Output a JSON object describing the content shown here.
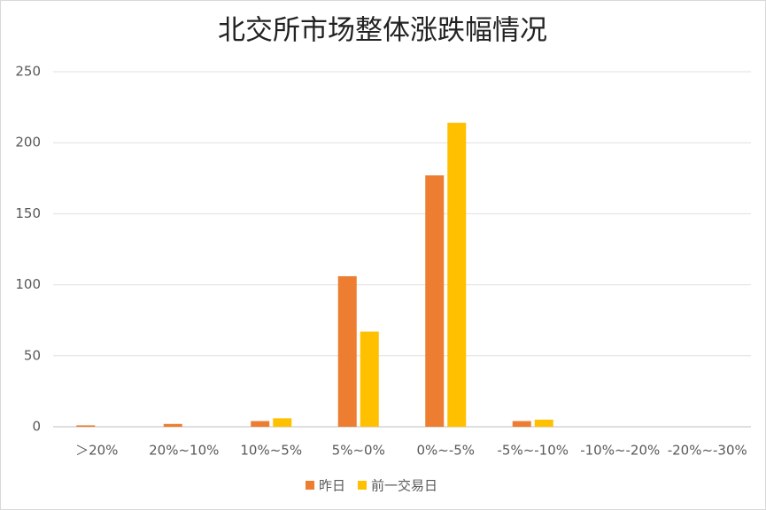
{
  "chart_data": {
    "type": "bar",
    "title": "北交所市场整体涨跌幅情况",
    "categories": [
      "＞20%",
      "20%~10%",
      "10%~5%",
      "5%~0%",
      "0%~-5%",
      "-5%~-10%",
      "-10%~-20%",
      "-20%~-30%"
    ],
    "series": [
      {
        "name": "昨日",
        "color": "#ED7D31",
        "values": [
          1,
          2,
          4,
          106,
          177,
          4,
          0,
          0
        ]
      },
      {
        "name": "前一交易日",
        "color": "#FFC000",
        "values": [
          0,
          0,
          6,
          67,
          214,
          5,
          0,
          0
        ]
      }
    ],
    "ylim": [
      0,
      250
    ],
    "yticks": [
      0,
      50,
      100,
      150,
      200,
      250
    ],
    "grid": true
  }
}
